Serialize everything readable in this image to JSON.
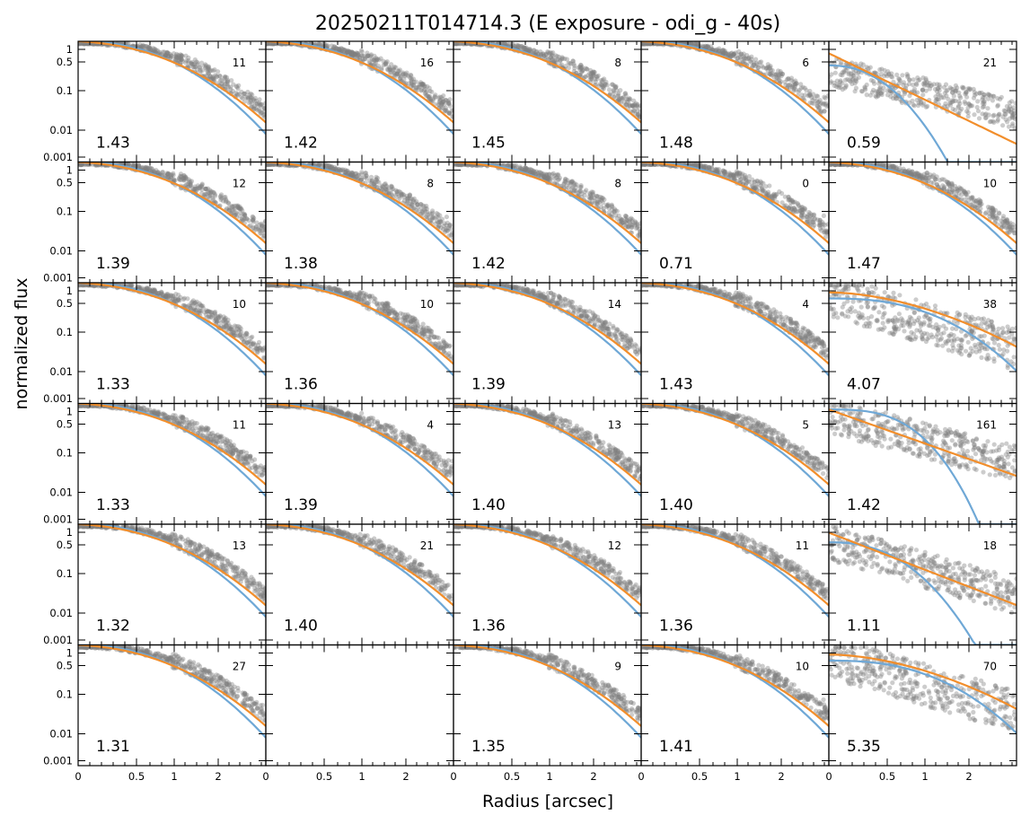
{
  "title": "20250211T014714.3 (E exposure - odi_g - 40s)",
  "chart_data": {
    "type": "scatter",
    "title": "20250211T014714.3 (E exposure - odi_g - 40s)",
    "xlabel": "Radius [arcsec]",
    "ylabel": "normalized flux",
    "x_tick_labels": [
      "0",
      "0.5",
      "1",
      "2"
    ],
    "y_tick_labels": [
      "1",
      "0.5",
      "0.1",
      "0.01",
      "0.001"
    ],
    "grid": false,
    "rows": 6,
    "cols": 5,
    "series_colors": {
      "points": "#808080",
      "model_a": "#6fa8d6",
      "model_b": "#f28e2b"
    },
    "panels": [
      {
        "fwhm": "1.43",
        "count": "11"
      },
      {
        "fwhm": "1.42",
        "count": "16"
      },
      {
        "fwhm": "1.45",
        "count": "8"
      },
      {
        "fwhm": "1.48",
        "count": "6"
      },
      {
        "fwhm": "0.59",
        "count": "21"
      },
      {
        "fwhm": "1.39",
        "count": "12"
      },
      {
        "fwhm": "1.38",
        "count": "8"
      },
      {
        "fwhm": "1.42",
        "count": "8"
      },
      {
        "fwhm": "0.71",
        "count": "0"
      },
      {
        "fwhm": "1.47",
        "count": "10"
      },
      {
        "fwhm": "1.33",
        "count": "10"
      },
      {
        "fwhm": "1.36",
        "count": "10"
      },
      {
        "fwhm": "1.39",
        "count": "14"
      },
      {
        "fwhm": "1.43",
        "count": "4"
      },
      {
        "fwhm": "4.07",
        "count": "38"
      },
      {
        "fwhm": "1.33",
        "count": "11"
      },
      {
        "fwhm": "1.39",
        "count": "4"
      },
      {
        "fwhm": "1.40",
        "count": "13"
      },
      {
        "fwhm": "1.40",
        "count": "5"
      },
      {
        "fwhm": "1.42",
        "count": "161"
      },
      {
        "fwhm": "1.32",
        "count": "13"
      },
      {
        "fwhm": "1.40",
        "count": "21"
      },
      {
        "fwhm": "1.36",
        "count": "12"
      },
      {
        "fwhm": "1.36",
        "count": "11"
      },
      {
        "fwhm": "1.11",
        "count": "18"
      },
      {
        "fwhm": "1.31",
        "count": "27"
      },
      {
        "fwhm": "",
        "count": ""
      },
      {
        "fwhm": "1.35",
        "count": "9"
      },
      {
        "fwhm": "1.41",
        "count": "10"
      },
      {
        "fwhm": "5.35",
        "count": "70"
      }
    ]
  }
}
